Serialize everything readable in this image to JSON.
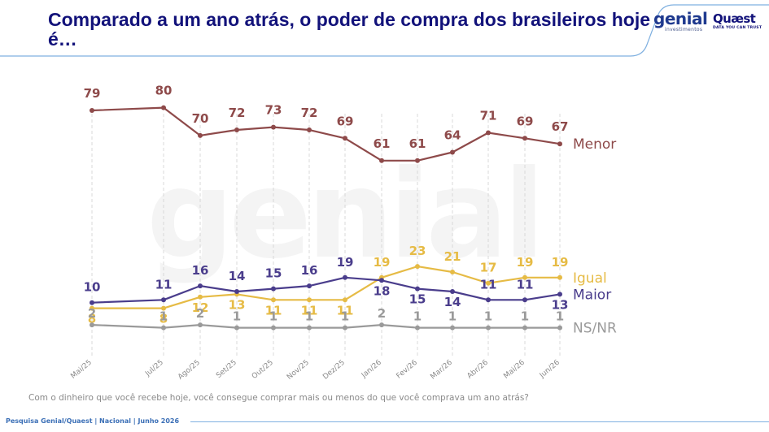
{
  "title": "Comparado a um ano atrás, o poder de compra dos brasileiros hoje é…",
  "logos": {
    "genial": {
      "name": "genial",
      "sub": "investimentos"
    },
    "quaest": {
      "name": "Quæst",
      "tagline": "DATA YOU CAN TRUST"
    }
  },
  "watermark": "genial",
  "question": "Com o dinheiro que você recebe hoje, você consegue comprar mais ou menos do que você comprava um ano atrás?",
  "footer": "Pesquisa Genial/Quaest | Nacional | Junho 2026",
  "colors": {
    "title": "#12127a",
    "accent_line": "#7fb0e0",
    "menor": "#8e4a4a",
    "igual": "#e6bb45",
    "maior": "#4a3d8c",
    "nsnr": "#9a9a9a"
  },
  "chart_data": {
    "type": "line",
    "title": "Comparado a um ano atrás, o poder de compra dos brasileiros hoje é…",
    "xlabel": "",
    "ylabel": "",
    "grid": "vertical dashed",
    "legend": "right, at line ends",
    "categories": [
      "Mai/25",
      "Jul/25",
      "Ago/25",
      "Set/25",
      "Out/25",
      "Nov/25",
      "Dez/25",
      "Jan/26",
      "Fev/26",
      "Mar/26",
      "Abr/26",
      "Mai/26",
      "Jun/26"
    ],
    "series": [
      {
        "name": "Menor",
        "color": "#8e4a4a",
        "values": [
          79,
          80,
          70,
          72,
          73,
          72,
          69,
          61,
          61,
          64,
          71,
          69,
          67
        ]
      },
      {
        "name": "Igual",
        "color": "#e6bb45",
        "values": [
          8,
          8,
          12,
          13,
          11,
          11,
          11,
          19,
          23,
          21,
          17,
          19,
          19
        ]
      },
      {
        "name": "Maior",
        "color": "#4a3d8c",
        "values": [
          10,
          11,
          16,
          14,
          15,
          16,
          19,
          18,
          15,
          14,
          11,
          11,
          13
        ]
      },
      {
        "name": "NS/NR",
        "color": "#9a9a9a",
        "values": [
          2,
          1,
          2,
          1,
          1,
          1,
          1,
          2,
          1,
          1,
          1,
          1,
          1
        ]
      }
    ]
  }
}
